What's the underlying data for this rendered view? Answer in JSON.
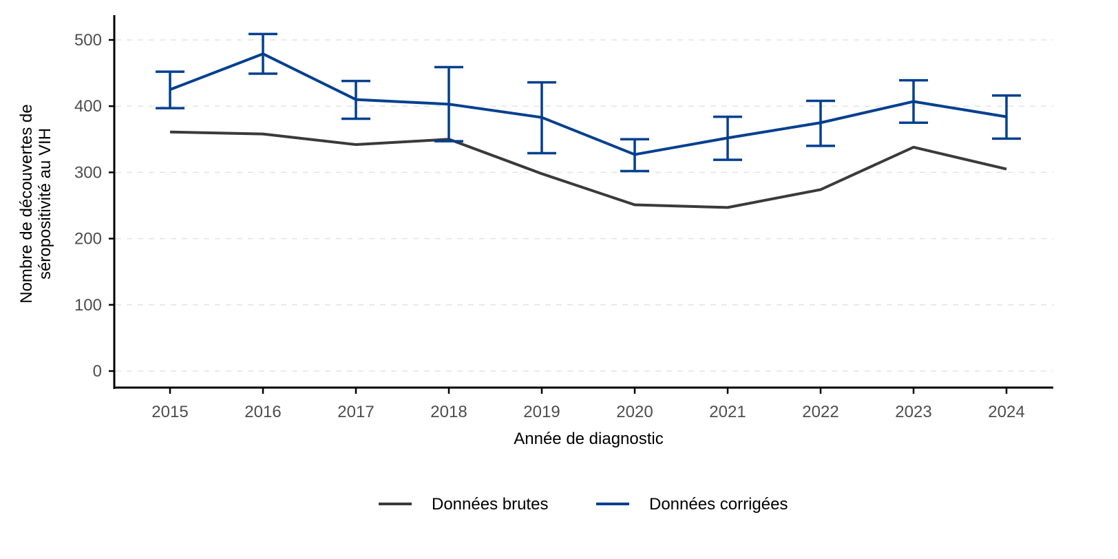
{
  "chart_data": {
    "type": "line",
    "title": "",
    "xlabel": "Année de diagnostic",
    "ylabel": [
      "Nombre de découvertes de",
      "séropositivité au VIH"
    ],
    "x": [
      2015,
      2016,
      2017,
      2018,
      2019,
      2020,
      2021,
      2022,
      2023,
      2024
    ],
    "xticks": [
      "2015",
      "2016",
      "2017",
      "2018",
      "2019",
      "2020",
      "2021",
      "2022",
      "2023",
      "2024"
    ],
    "yticks": [
      "0",
      "100",
      "200",
      "300",
      "400",
      "500"
    ],
    "ylim": [
      -25,
      535
    ],
    "grid": "horizontal dashed",
    "legend": "bottom",
    "series": [
      {
        "name": "Données brutes",
        "color": "#3a3a3a",
        "values": [
          361,
          358,
          342,
          350,
          298,
          251,
          247,
          274,
          338,
          305
        ]
      },
      {
        "name": "Données corrigées",
        "color": "#003f8f",
        "values": [
          425,
          479,
          410,
          403,
          383,
          327,
          352,
          375,
          407,
          384
        ],
        "lower": [
          397,
          449,
          381,
          347,
          329,
          302,
          319,
          340,
          375,
          351
        ],
        "upper": [
          452,
          509,
          438,
          459,
          436,
          350,
          384,
          408,
          439,
          416
        ]
      }
    ]
  }
}
